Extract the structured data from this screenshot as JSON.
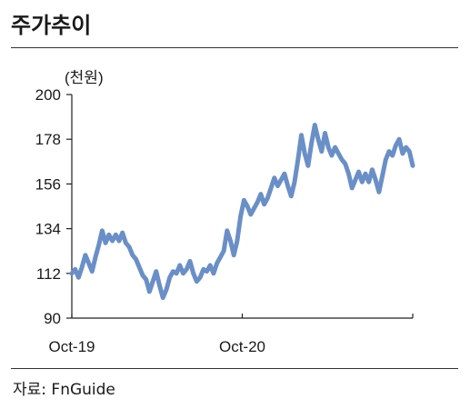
{
  "title": "주가추이",
  "source": "자료: FnGuide",
  "chart_data": {
    "type": "line",
    "unit_label": "(천원)",
    "title": "",
    "xlabel": "",
    "ylabel": "",
    "ylim": [
      90,
      200
    ],
    "y_ticks": [
      90,
      112,
      134,
      156,
      178,
      200
    ],
    "x_tick_labels": [
      "Oct-19",
      "Oct-20"
    ],
    "line_color": "#6a8fc8",
    "legend": "none",
    "grid": false,
    "series": [
      {
        "points": [
          [
            0.0,
            112
          ],
          [
            0.5,
            114
          ],
          [
            1,
            110
          ],
          [
            1.5,
            115
          ],
          [
            2,
            121
          ],
          [
            2.5,
            117
          ],
          [
            3,
            113
          ],
          [
            3.5,
            120
          ],
          [
            4,
            126
          ],
          [
            4.5,
            133
          ],
          [
            5,
            127
          ],
          [
            5.5,
            131
          ],
          [
            6,
            128
          ],
          [
            6.5,
            131
          ],
          [
            7,
            128
          ],
          [
            7.5,
            132
          ],
          [
            8,
            127
          ],
          [
            8.5,
            125
          ],
          [
            9,
            121
          ],
          [
            9.5,
            119
          ],
          [
            10,
            115
          ],
          [
            10.5,
            111
          ],
          [
            11,
            109
          ],
          [
            11.5,
            103
          ],
          [
            12,
            108
          ],
          [
            12.5,
            113
          ],
          [
            13,
            106
          ],
          [
            13.5,
            100
          ],
          [
            14,
            104
          ],
          [
            14.5,
            110
          ],
          [
            15,
            113
          ],
          [
            15.5,
            112
          ],
          [
            16,
            116
          ],
          [
            16.5,
            112
          ],
          [
            17,
            114
          ],
          [
            17.5,
            118
          ],
          [
            18,
            112
          ],
          [
            18.5,
            108
          ],
          [
            19,
            110
          ],
          [
            19.5,
            114
          ],
          [
            20,
            113
          ],
          [
            20.5,
            116
          ],
          [
            21,
            112
          ],
          [
            21.5,
            117
          ],
          [
            22,
            120
          ],
          [
            22.5,
            123
          ],
          [
            23,
            133
          ],
          [
            23.5,
            128
          ],
          [
            24,
            121
          ],
          [
            24.5,
            128
          ],
          [
            25,
            140
          ],
          [
            25.5,
            148
          ],
          [
            26,
            145
          ],
          [
            26.5,
            141
          ],
          [
            27,
            144
          ],
          [
            27.5,
            147
          ],
          [
            28,
            151
          ],
          [
            28.5,
            146
          ],
          [
            29,
            149
          ],
          [
            29.5,
            154
          ],
          [
            30,
            159
          ],
          [
            30.5,
            155
          ],
          [
            31,
            158
          ],
          [
            31.5,
            161
          ],
          [
            32,
            155
          ],
          [
            32.5,
            150
          ],
          [
            33,
            157
          ],
          [
            33.5,
            168
          ],
          [
            34,
            180
          ],
          [
            34.5,
            171
          ],
          [
            35,
            165
          ],
          [
            35.5,
            176
          ],
          [
            36,
            185
          ],
          [
            36.5,
            178
          ],
          [
            37,
            172
          ],
          [
            37.5,
            181
          ],
          [
            38,
            174
          ],
          [
            38.5,
            170
          ],
          [
            39,
            174
          ],
          [
            39.5,
            171
          ],
          [
            40,
            168
          ],
          [
            40.5,
            166
          ],
          [
            41,
            161
          ],
          [
            41.5,
            154
          ],
          [
            42,
            158
          ],
          [
            42.5,
            162
          ],
          [
            43,
            157
          ],
          [
            43.5,
            161
          ],
          [
            44,
            157
          ],
          [
            44.5,
            163
          ],
          [
            45,
            158
          ],
          [
            45.5,
            152
          ],
          [
            46,
            160
          ],
          [
            46.5,
            168
          ],
          [
            47,
            172
          ],
          [
            47.5,
            170
          ],
          [
            48,
            175
          ],
          [
            48.5,
            178
          ],
          [
            49,
            171
          ],
          [
            49.5,
            174
          ],
          [
            50,
            172
          ],
          [
            50.5,
            165
          ]
        ]
      }
    ]
  }
}
